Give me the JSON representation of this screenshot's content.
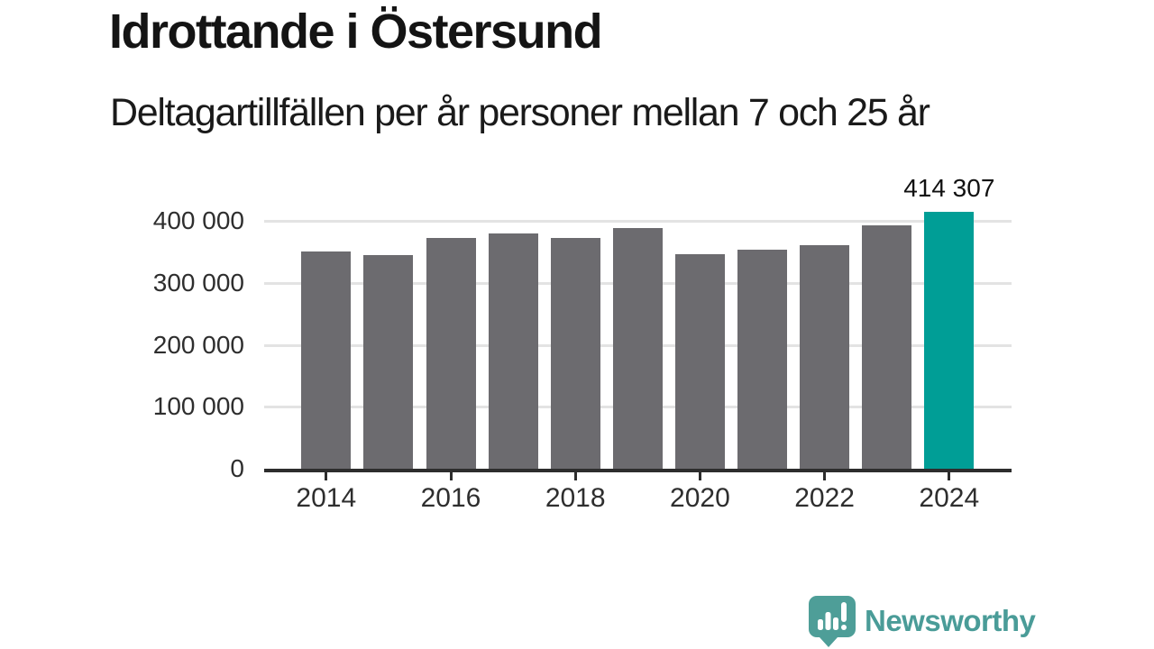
{
  "chart_data": {
    "type": "bar",
    "title": "Idrottande i Östersund",
    "subtitle": "Deltagartillfällen per år personer mellan 7 och 25 år",
    "categories": [
      2014,
      2015,
      2016,
      2017,
      2018,
      2019,
      2020,
      2021,
      2022,
      2023,
      2024
    ],
    "values": [
      350000,
      345000,
      372000,
      379000,
      373000,
      388000,
      346000,
      353000,
      361000,
      393000,
      414307
    ],
    "highlight_index": 10,
    "annotation": {
      "label": "414 307",
      "applies_to": 2024
    },
    "yticks": [
      {
        "value": 0,
        "label": "0"
      },
      {
        "value": 100000,
        "label": "100 000"
      },
      {
        "value": 200000,
        "label": "200 000"
      },
      {
        "value": 300000,
        "label": "300 000"
      },
      {
        "value": 400000,
        "label": "400 000"
      }
    ],
    "xticks": [
      "2014",
      "2016",
      "2018",
      "2020",
      "2022",
      "2024"
    ],
    "ylim": [
      0,
      430000
    ],
    "grid": true,
    "legend": false,
    "colors": {
      "bar": "#6c6b6f",
      "highlight": "#009e96",
      "grid": "#e3e3e3",
      "axis": "#2d2d2d",
      "tick_text": "#2e2e2e",
      "annotation_text": "#111111"
    }
  },
  "footer": {
    "brand": "Newsworthy",
    "brand_color": "#4a9c98",
    "logo_icon": "bar-chart-speech-bubble-icon"
  }
}
